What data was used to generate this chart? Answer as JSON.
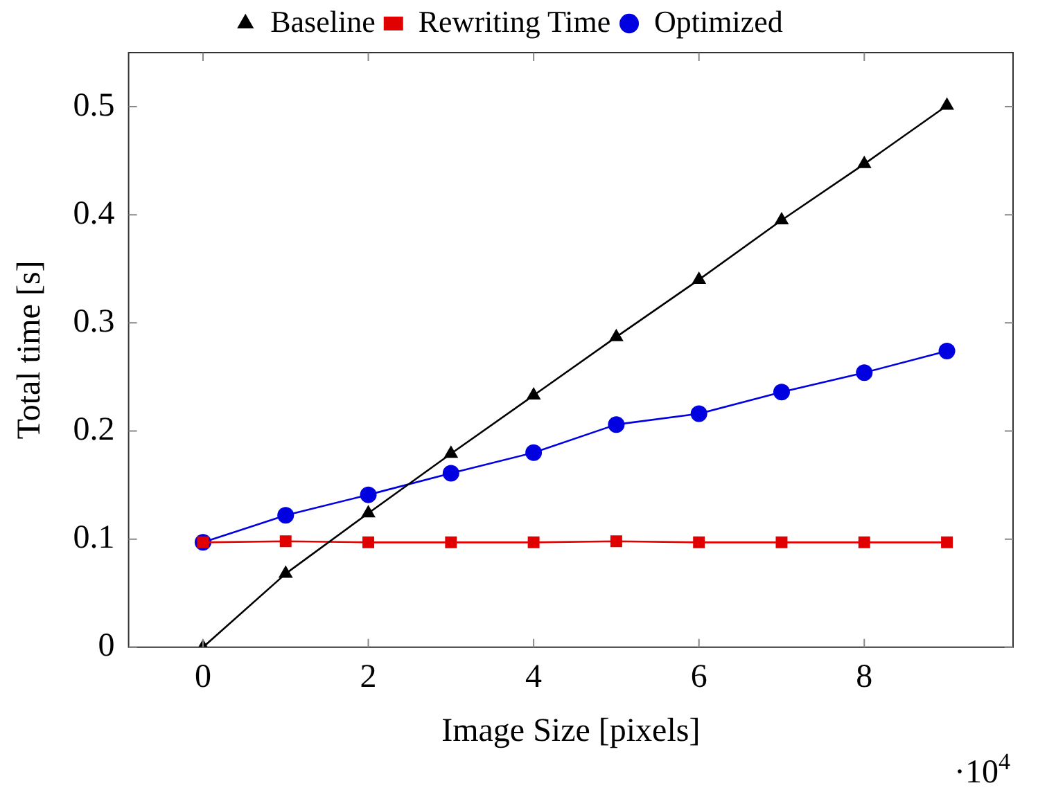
{
  "chart_data": {
    "type": "line",
    "xlabel": "Image Size [pixels]",
    "ylabel": "Total time [s]",
    "x": [
      0,
      1,
      2,
      3,
      4,
      5,
      6,
      7,
      8,
      9
    ],
    "series": [
      {
        "name": "Baseline",
        "color": "#000000",
        "marker": "triangle",
        "values": [
          0,
          0.068,
          0.124,
          0.179,
          0.233,
          0.287,
          0.34,
          0.395,
          0.447,
          0.501
        ]
      },
      {
        "name": "Rewriting Time",
        "color": "#e00000",
        "marker": "square",
        "values": [
          0.097,
          0.098,
          0.097,
          0.097,
          0.097,
          0.098,
          0.097,
          0.097,
          0.097,
          0.097
        ]
      },
      {
        "name": "Optimized",
        "color": "#0000e0",
        "marker": "circle",
        "values": [
          0.097,
          0.122,
          0.141,
          0.161,
          0.18,
          0.206,
          0.216,
          0.236,
          0.254,
          0.274
        ]
      }
    ],
    "xlim": [
      -0.9,
      9.8
    ],
    "xticks": [
      0,
      2,
      4,
      6,
      8
    ],
    "ylim": [
      0,
      0.55
    ],
    "yticks": [
      0,
      0.1,
      0.2,
      0.3,
      0.4,
      0.5
    ],
    "annotations": [
      "·10$^{4}$"
    ],
    "grid": false,
    "legend": "top",
    "line_style": "solid"
  }
}
